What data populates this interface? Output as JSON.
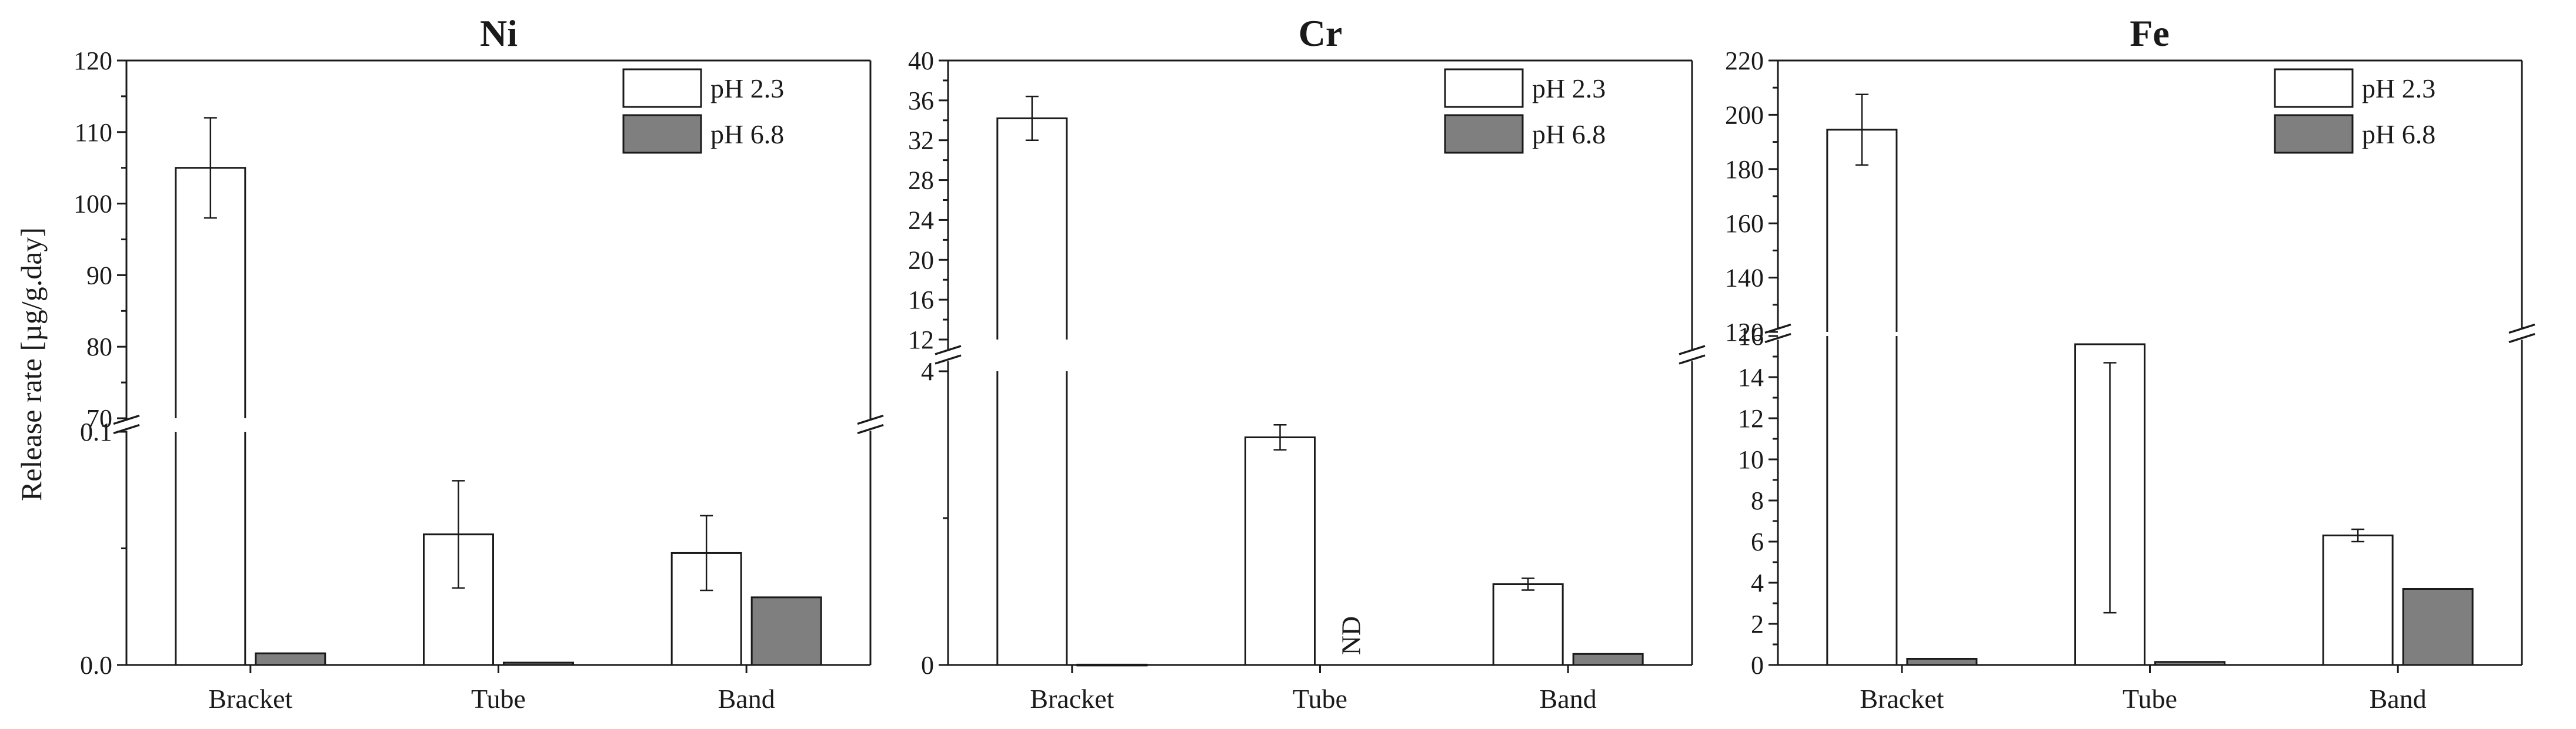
{
  "chart_data": [
    {
      "type": "bar",
      "title": "Ni",
      "ylabel": "Release rate [µg/g.day]",
      "xlabel": "",
      "categories": [
        "Bracket",
        "Tube",
        "Band"
      ],
      "series": [
        {
          "name": "pH 2.3",
          "color": "#ffffff",
          "values": [
            105,
            0.056,
            0.048
          ],
          "errors": [
            7,
            0.023,
            0.016
          ]
        },
        {
          "name": "pH 6.8",
          "color": "#7f7f7f",
          "values": [
            0.005,
            0.001,
            0.029
          ],
          "errors": [
            0,
            0,
            0
          ]
        }
      ],
      "broken_axis": {
        "lower": {
          "range": [
            0,
            0.1
          ],
          "ticks": [
            0.0,
            0.1
          ],
          "tick_labels": [
            "0.0",
            "0.1"
          ]
        },
        "upper": {
          "range": [
            70,
            120
          ],
          "ticks": [
            70,
            80,
            90,
            100,
            110,
            120
          ],
          "tick_labels": [
            "70",
            "80",
            "90",
            "100",
            "110",
            "120"
          ]
        }
      },
      "legend": "top-right",
      "grid": false,
      "annotations": []
    },
    {
      "type": "bar",
      "title": "Cr",
      "ylabel": "",
      "xlabel": "",
      "categories": [
        "Bracket",
        "Tube",
        "Band"
      ],
      "series": [
        {
          "name": "pH 2.3",
          "color": "#ffffff",
          "values": [
            34.2,
            3.1,
            1.1
          ],
          "errors": [
            2.2,
            0.17,
            0.08
          ]
        },
        {
          "name": "pH 6.8",
          "color": "#7f7f7f",
          "values": [
            0.005,
            null,
            0.15
          ],
          "errors": [
            0,
            0,
            0
          ]
        }
      ],
      "broken_axis": {
        "lower": {
          "range": [
            0,
            4
          ],
          "ticks": [
            0,
            4
          ],
          "tick_labels": [
            "0",
            "4"
          ]
        },
        "upper": {
          "range": [
            12,
            40
          ],
          "ticks": [
            12,
            16,
            20,
            24,
            28,
            32,
            36,
            40
          ],
          "tick_labels": [
            "12",
            "16",
            "20",
            "24",
            "28",
            "32",
            "36",
            "40"
          ]
        }
      },
      "legend": "top-right",
      "grid": false,
      "annotations": [
        {
          "text": "ND",
          "category": "Tube",
          "series": "pH 6.8"
        }
      ]
    },
    {
      "type": "bar",
      "title": "Fe",
      "ylabel": "",
      "xlabel": "",
      "categories": [
        "Bracket",
        "Tube",
        "Band"
      ],
      "series": [
        {
          "name": "pH 2.3",
          "color": "#ffffff",
          "values": [
            194.5,
            15.6,
            6.3
          ],
          "errors": [
            13,
            0.9,
            0.3
          ]
        },
        {
          "name": "pH 6.8",
          "color": "#7f7f7f",
          "values": [
            0.3,
            0.15,
            3.7
          ],
          "errors": [
            0,
            0,
            0
          ]
        }
      ],
      "broken_axis": {
        "lower": {
          "range": [
            0,
            16
          ],
          "ticks": [
            0,
            2,
            4,
            6,
            8,
            10,
            12,
            14,
            16
          ],
          "tick_labels": [
            "0",
            "2",
            "4",
            "6",
            "8",
            "10",
            "12",
            "14",
            "16"
          ]
        },
        "upper": {
          "range": [
            120,
            220
          ],
          "ticks": [
            120,
            140,
            160,
            180,
            200,
            220
          ],
          "tick_labels": [
            "120",
            "140",
            "160",
            "180",
            "200",
            "220"
          ]
        }
      },
      "legend": "top-right",
      "grid": false,
      "annotations": []
    }
  ]
}
